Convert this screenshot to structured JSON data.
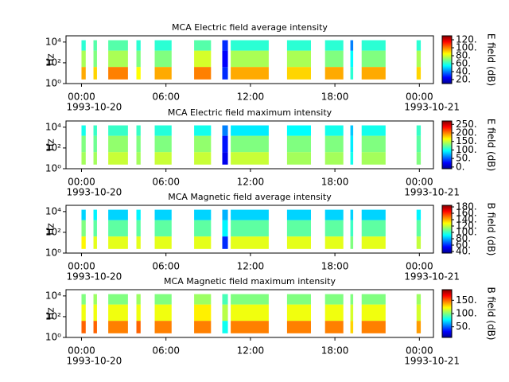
{
  "chart_data": [
    {
      "type": "heatmap",
      "title": "MCA  Electric field average intensity",
      "ylabel": "Hz",
      "colorbar_label": "E field (dB)",
      "log_y": true,
      "xlim": [
        -1.1,
        25
      ],
      "xticks": [
        {
          "value": 0,
          "label": "00:00"
        },
        {
          "value": 6,
          "label": "06:00"
        },
        {
          "value": 12,
          "label": "12:00"
        },
        {
          "value": 18,
          "label": "18:00"
        },
        {
          "value": 24,
          "label": "00:00"
        }
      ],
      "date_labels": [
        {
          "value": 0,
          "label": "1993-10-20"
        },
        {
          "value": 24,
          "label": "1993-10-21"
        }
      ],
      "ylim": [
        1,
        40000
      ],
      "yticks": [
        {
          "value": 1,
          "label": "10⁰"
        },
        {
          "value": 100,
          "label": "10²"
        },
        {
          "value": 10000,
          "label": "10⁴"
        }
      ],
      "clim": [
        10,
        130
      ],
      "cticks": [
        {
          "value": 20,
          "label": "20."
        },
        {
          "value": 40,
          "label": "40."
        },
        {
          "value": 60,
          "label": "60."
        },
        {
          "value": 80,
          "label": "80."
        },
        {
          "value": 100,
          "label": "100."
        },
        {
          "value": 120,
          "label": "120."
        }
      ],
      "segments": [
        [
          0,
          0.3
        ],
        [
          0.85,
          1.1
        ],
        [
          1.9,
          3.3
        ],
        [
          3.9,
          4.2
        ],
        [
          5.2,
          6.4
        ],
        [
          8.0,
          9.2
        ],
        [
          10.0,
          10.4
        ],
        [
          10.6,
          13.3
        ],
        [
          14.6,
          16.3
        ],
        [
          17.3,
          18.6
        ],
        [
          19.1,
          19.3
        ],
        [
          19.9,
          21.6
        ],
        [
          23.8,
          24.1
        ]
      ],
      "freq_edges": [
        2.5,
        40,
        1500,
        15000
      ],
      "values": [
        [
          95,
          75,
          60
        ],
        [
          90,
          70,
          65
        ],
        [
          100,
          75,
          65
        ],
        [
          85,
          70,
          60
        ],
        [
          95,
          70,
          60
        ],
        [
          100,
          80,
          65
        ],
        [
          30,
          25,
          30
        ],
        [
          95,
          75,
          60
        ],
        [
          90,
          75,
          60
        ],
        [
          95,
          70,
          60
        ],
        [
          60,
          55,
          40
        ],
        [
          95,
          70,
          60
        ],
        [
          90,
          75,
          60
        ]
      ]
    },
    {
      "type": "heatmap",
      "title": "MCA  Electric field maximum intensity",
      "ylabel": "Hz",
      "colorbar_label": "E field (dB)",
      "log_y": true,
      "xlim": [
        -1.1,
        25
      ],
      "xticks": [
        {
          "value": 0,
          "label": "00:00"
        },
        {
          "value": 6,
          "label": "06:00"
        },
        {
          "value": 12,
          "label": "12:00"
        },
        {
          "value": 18,
          "label": "18:00"
        },
        {
          "value": 24,
          "label": "00:00"
        }
      ],
      "date_labels": [
        {
          "value": 0,
          "label": "1993-10-20"
        },
        {
          "value": 24,
          "label": "1993-10-21"
        }
      ],
      "ylim": [
        1,
        40000
      ],
      "yticks": [
        {
          "value": 1,
          "label": "10⁰"
        },
        {
          "value": 100,
          "label": "10²"
        },
        {
          "value": 10000,
          "label": "10⁴"
        }
      ],
      "clim": [
        -10,
        270
      ],
      "cticks": [
        {
          "value": 0,
          "label": "0."
        },
        {
          "value": 50,
          "label": "50."
        },
        {
          "value": 100,
          "label": "100."
        },
        {
          "value": 150,
          "label": "150."
        },
        {
          "value": 200,
          "label": "200."
        },
        {
          "value": 250,
          "label": "250."
        }
      ],
      "segments": [
        [
          0,
          0.3
        ],
        [
          0.85,
          1.1
        ],
        [
          1.9,
          3.3
        ],
        [
          3.9,
          4.2
        ],
        [
          5.2,
          6.4
        ],
        [
          8.0,
          9.2
        ],
        [
          10.0,
          10.4
        ],
        [
          10.6,
          13.3
        ],
        [
          14.6,
          16.3
        ],
        [
          17.3,
          18.6
        ],
        [
          19.1,
          19.3
        ],
        [
          19.9,
          21.6
        ],
        [
          23.8,
          24.1
        ]
      ],
      "freq_edges": [
        2.5,
        40,
        1500,
        15000
      ],
      "values": [
        [
          140,
          130,
          100
        ],
        [
          140,
          125,
          110
        ],
        [
          150,
          135,
          110
        ],
        [
          140,
          130,
          110
        ],
        [
          150,
          130,
          105
        ],
        [
          150,
          135,
          100
        ],
        [
          20,
          30,
          60
        ],
        [
          150,
          130,
          90
        ],
        [
          140,
          130,
          95
        ],
        [
          140,
          130,
          100
        ],
        [
          100,
          90,
          80
        ],
        [
          140,
          130,
          100
        ],
        [
          130,
          120,
          110
        ]
      ]
    },
    {
      "type": "heatmap",
      "title": "MCA  Magnetic field average intensity",
      "ylabel": "Hz",
      "colorbar_label": "B field (dB)",
      "log_y": true,
      "xlim": [
        -1.1,
        25
      ],
      "xticks": [
        {
          "value": 0,
          "label": "00:00"
        },
        {
          "value": 6,
          "label": "06:00"
        },
        {
          "value": 12,
          "label": "12:00"
        },
        {
          "value": 18,
          "label": "18:00"
        },
        {
          "value": 24,
          "label": "00:00"
        }
      ],
      "date_labels": [
        {
          "value": 0,
          "label": "1993-10-20"
        },
        {
          "value": 24,
          "label": "1993-10-21"
        }
      ],
      "ylim": [
        1,
        40000
      ],
      "yticks": [
        {
          "value": 1,
          "label": "10⁰"
        },
        {
          "value": 100,
          "label": "10²"
        },
        {
          "value": 10000,
          "label": "10⁴"
        }
      ],
      "clim": [
        35,
        185
      ],
      "cticks": [
        {
          "value": 40,
          "label": "40."
        },
        {
          "value": 60,
          "label": "60."
        },
        {
          "value": 80,
          "label": "80."
        },
        {
          "value": 100,
          "label": "100."
        },
        {
          "value": 120,
          "label": "120."
        },
        {
          "value": 140,
          "label": "140."
        },
        {
          "value": 160,
          "label": "160."
        },
        {
          "value": 180,
          "label": "180."
        }
      ],
      "segments": [
        [
          0,
          0.3
        ],
        [
          0.85,
          1.1
        ],
        [
          1.9,
          3.3
        ],
        [
          3.9,
          4.2
        ],
        [
          5.2,
          6.4
        ],
        [
          8.0,
          9.2
        ],
        [
          10.0,
          10.4
        ],
        [
          10.6,
          13.3
        ],
        [
          14.6,
          16.3
        ],
        [
          17.3,
          18.6
        ],
        [
          19.1,
          19.3
        ],
        [
          19.9,
          21.6
        ],
        [
          23.8,
          24.1
        ]
      ],
      "freq_edges": [
        2.5,
        40,
        1500,
        15000
      ],
      "values": [
        [
          130,
          110,
          85
        ],
        [
          125,
          105,
          90
        ],
        [
          125,
          105,
          85
        ],
        [
          125,
          105,
          90
        ],
        [
          125,
          105,
          85
        ],
        [
          125,
          105,
          85
        ],
        [
          60,
          90,
          80
        ],
        [
          125,
          105,
          85
        ],
        [
          125,
          105,
          85
        ],
        [
          125,
          105,
          85
        ],
        [
          110,
          100,
          85
        ],
        [
          125,
          105,
          85
        ],
        [
          120,
          105,
          90
        ]
      ]
    },
    {
      "type": "heatmap",
      "title": "MCA  Magnetic field maximum intensity",
      "ylabel": "Hz",
      "colorbar_label": "B field (dB)",
      "log_y": true,
      "xlim": [
        -1.1,
        25
      ],
      "xticks": [
        {
          "value": 0,
          "label": "00:00"
        },
        {
          "value": 6,
          "label": "06:00"
        },
        {
          "value": 12,
          "label": "12:00"
        },
        {
          "value": 18,
          "label": "18:00"
        },
        {
          "value": 24,
          "label": "00:00"
        }
      ],
      "date_labels": [
        {
          "value": 0,
          "label": "1993-10-20"
        },
        {
          "value": 24,
          "label": "1993-10-21"
        }
      ],
      "ylim": [
        1,
        40000
      ],
      "yticks": [
        {
          "value": 1,
          "label": "10⁰"
        },
        {
          "value": 100,
          "label": "10²"
        },
        {
          "value": 10000,
          "label": "10⁴"
        }
      ],
      "clim": [
        10,
        190
      ],
      "cticks": [
        {
          "value": 50,
          "label": "50."
        },
        {
          "value": 100,
          "label": "100."
        },
        {
          "value": 150,
          "label": "150."
        }
      ],
      "segments": [
        [
          0,
          0.3
        ],
        [
          0.85,
          1.1
        ],
        [
          1.9,
          3.3
        ],
        [
          3.9,
          4.2
        ],
        [
          5.2,
          6.4
        ],
        [
          8.0,
          9.2
        ],
        [
          10.0,
          10.4
        ],
        [
          10.6,
          13.3
        ],
        [
          14.6,
          16.3
        ],
        [
          17.3,
          18.6
        ],
        [
          19.1,
          19.3
        ],
        [
          19.9,
          21.6
        ],
        [
          23.8,
          24.1
        ]
      ],
      "freq_edges": [
        2.5,
        40,
        1500,
        15000
      ],
      "values": [
        [
          150,
          120,
          100
        ],
        [
          150,
          120,
          105
        ],
        [
          145,
          120,
          100
        ],
        [
          150,
          120,
          105
        ],
        [
          145,
          120,
          100
        ],
        [
          145,
          125,
          105
        ],
        [
          80,
          110,
          90
        ],
        [
          145,
          120,
          100
        ],
        [
          145,
          120,
          100
        ],
        [
          145,
          120,
          100
        ],
        [
          130,
          115,
          100
        ],
        [
          145,
          120,
          100
        ],
        [
          140,
          115,
          105
        ]
      ]
    }
  ]
}
